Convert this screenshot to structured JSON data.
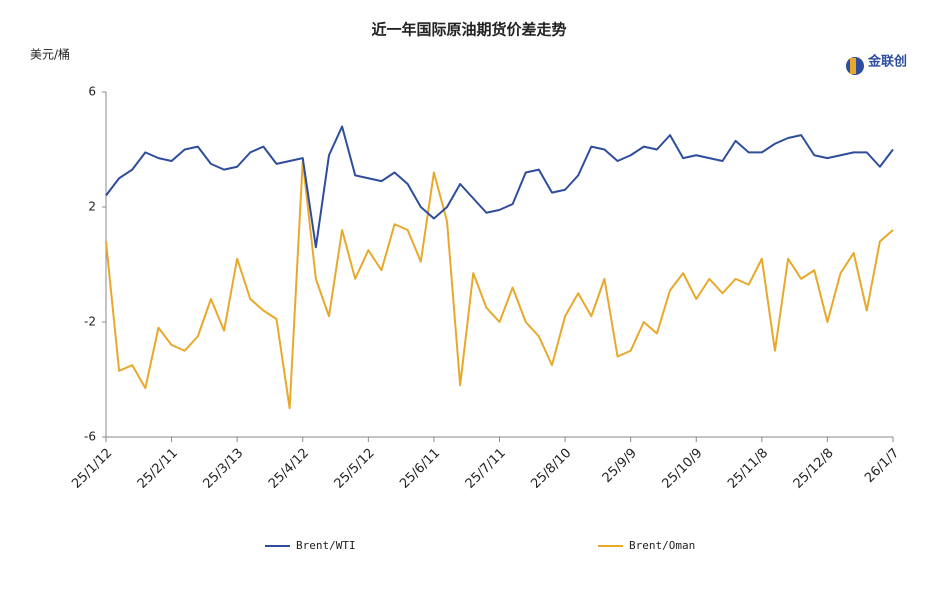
{
  "chart_data": {
    "type": "line",
    "title": "近一年国际原油期货价差走势",
    "y_label": "美元/桶",
    "logo": "金联创",
    "x": [
      "25/1/12",
      "25/1/18",
      "25/1/24",
      "25/1/30",
      "25/2/5",
      "25/2/11",
      "25/2/17",
      "25/2/23",
      "25/3/1",
      "25/3/7",
      "25/3/13",
      "25/3/19",
      "25/3/25",
      "25/3/31",
      "25/4/6",
      "25/4/12",
      "25/4/18",
      "25/4/24",
      "25/4/30",
      "25/5/6",
      "25/5/12",
      "25/5/18",
      "25/5/24",
      "25/5/30",
      "25/6/5",
      "25/6/11",
      "25/6/17",
      "25/6/23",
      "25/6/29",
      "25/7/5",
      "25/7/11",
      "25/7/17",
      "25/7/23",
      "25/7/29",
      "25/8/4",
      "25/8/10",
      "25/8/16",
      "25/8/22",
      "25/8/28",
      "25/9/3",
      "25/9/9",
      "25/9/15",
      "25/9/21",
      "25/9/27",
      "25/10/3",
      "25/10/9",
      "25/10/15",
      "25/10/21",
      "25/10/27",
      "25/11/2",
      "25/11/8",
      "25/11/14",
      "25/11/20",
      "25/11/26",
      "25/12/2",
      "25/12/8",
      "25/12/14",
      "25/12/20",
      "25/12/26",
      "26/1/1",
      "26/1/7"
    ],
    "series": [
      {
        "name": "Brent/WTI",
        "color": "#2e4d9c",
        "values": [
          2.4,
          3.0,
          3.3,
          3.9,
          3.7,
          3.6,
          4.0,
          4.1,
          3.5,
          3.3,
          3.4,
          3.9,
          4.1,
          3.5,
          3.6,
          3.7,
          0.6,
          3.8,
          4.8,
          3.1,
          3.0,
          2.9,
          3.2,
          2.8,
          2.0,
          1.6,
          2.0,
          2.8,
          2.3,
          1.8,
          1.9,
          2.1,
          3.2,
          3.3,
          2.5,
          2.6,
          3.1,
          4.1,
          4.0,
          3.6,
          3.8,
          4.1,
          4.0,
          4.5,
          3.7,
          3.8,
          3.7,
          3.6,
          4.3,
          3.9,
          3.9,
          4.2,
          4.4,
          4.5,
          3.8,
          3.7,
          3.8,
          3.9,
          3.9,
          3.4,
          4.0
        ]
      },
      {
        "name": "Brent/Oman",
        "color": "#e8a92b",
        "values": [
          0.8,
          -3.7,
          -3.5,
          -4.3,
          -2.2,
          -2.8,
          -3.0,
          -2.5,
          -1.2,
          -2.3,
          0.2,
          -1.2,
          -1.6,
          -1.9,
          -5.0,
          3.6,
          -0.5,
          -1.8,
          1.2,
          -0.5,
          0.5,
          -0.2,
          1.4,
          1.2,
          0.1,
          3.2,
          1.5,
          -4.2,
          -0.3,
          -1.5,
          -2.0,
          -0.8,
          -2.0,
          -2.5,
          -3.5,
          -1.8,
          -1.0,
          -1.8,
          -0.5,
          -3.2,
          -3.0,
          -2.0,
          -2.4,
          -0.9,
          -0.3,
          -1.2,
          -0.5,
          -1.0,
          -0.5,
          -0.7,
          0.2,
          -3.0,
          0.2,
          -0.5,
          -0.2,
          -2.0,
          -0.3,
          0.4,
          -1.6,
          0.8,
          1.2
        ]
      }
    ],
    "xlim": [
      "25/1/12",
      "26/1/7"
    ],
    "xticks": [
      "25/1/12",
      "25/2/11",
      "25/3/13",
      "25/4/12",
      "25/5/12",
      "25/6/11",
      "25/7/11",
      "25/8/10",
      "25/9/9",
      "25/10/9",
      "25/11/8",
      "25/12/8",
      "26/1/7"
    ],
    "ylim": [
      -6,
      6
    ],
    "yticks": [
      6,
      2,
      -2,
      -6
    ],
    "grid": false,
    "legend": "bottom"
  }
}
